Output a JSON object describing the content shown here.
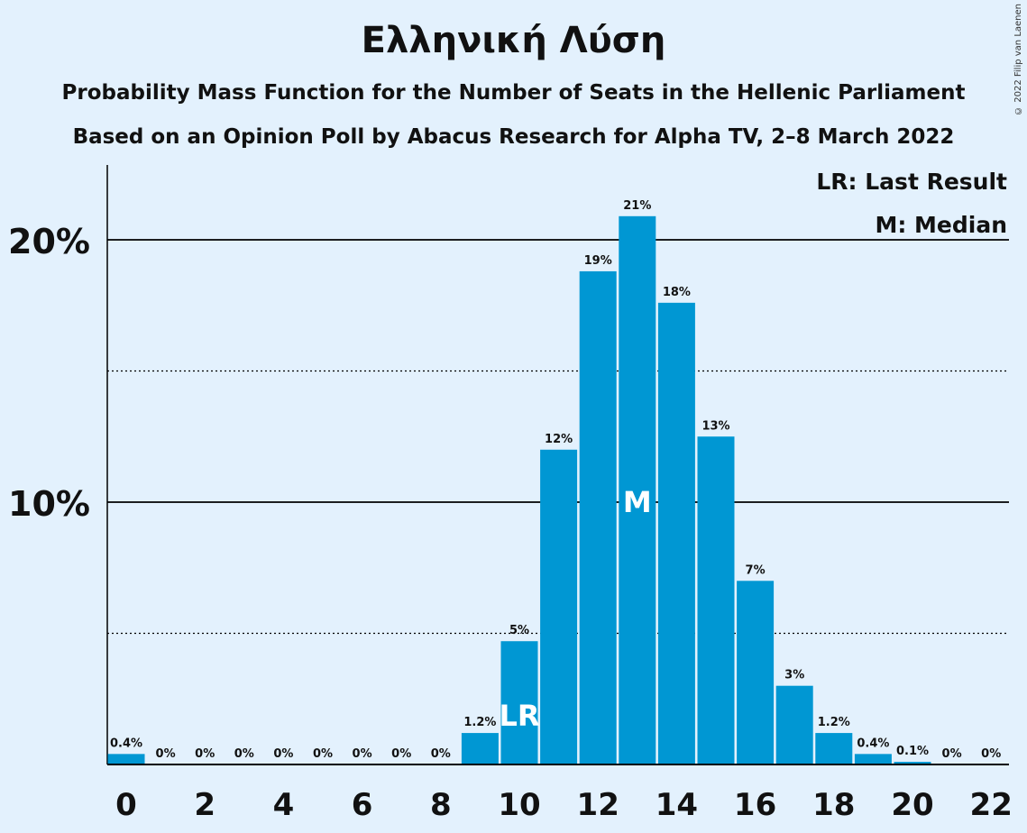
{
  "title": "Ελληνική Λύση",
  "subtitle1": "Probability Mass Function for the Number of Seats in the Hellenic Parliament",
  "subtitle2": "Based on an Opinion Poll by Abacus Research for Alpha TV, 2–8 March 2022",
  "copyright": "© 2022 Filip van Laenen",
  "colors": {
    "bar": "#0097d3",
    "background": "#e3f1fd",
    "text": "#111111"
  },
  "chart_data": {
    "type": "bar",
    "categories": [
      0,
      1,
      2,
      3,
      4,
      5,
      6,
      7,
      8,
      9,
      10,
      11,
      12,
      13,
      14,
      15,
      16,
      17,
      18,
      19,
      20,
      21,
      22
    ],
    "values": [
      0.4,
      0,
      0,
      0,
      0,
      0,
      0,
      0,
      0,
      1.2,
      4.7,
      12.0,
      18.8,
      20.9,
      17.6,
      12.5,
      7.0,
      3.0,
      1.2,
      0.4,
      0.1,
      0,
      0
    ],
    "data_labels": [
      "0.4%",
      "0%",
      "0%",
      "0%",
      "0%",
      "0%",
      "0%",
      "0%",
      "0%",
      "1.2%",
      "5%",
      "12%",
      "19%",
      "21%",
      "18%",
      "13%",
      "7%",
      "3%",
      "1.2%",
      "0.4%",
      "0.1%",
      "0%",
      "0%"
    ],
    "x_tick_labels": [
      "0",
      "2",
      "4",
      "6",
      "8",
      "10",
      "12",
      "14",
      "16",
      "18",
      "20",
      "22"
    ],
    "y_tick_labels": [
      "10%",
      "20%"
    ],
    "ylim": [
      0,
      23
    ],
    "solid_gridlines": [
      10,
      20
    ],
    "dotted_gridlines": [
      5,
      15
    ],
    "markers": [
      {
        "category": 10,
        "label": "LR"
      },
      {
        "category": 13,
        "label": "M"
      }
    ],
    "legend": [
      "LR: Last Result",
      "M: Median"
    ],
    "legend_position": "top-right"
  }
}
